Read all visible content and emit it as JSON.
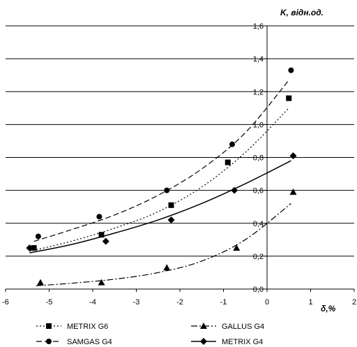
{
  "chart_data": {
    "type": "scatter",
    "xlabel": "δ,%",
    "ylabel": "K, відн.од.",
    "xlim": [
      -6,
      2
    ],
    "ylim": [
      0,
      1.6
    ],
    "x_ticks": [
      "-6",
      "-5",
      "-4",
      "-3",
      "-2",
      "-1",
      "0",
      "1",
      "2"
    ],
    "y_ticks": [
      "0,0",
      "0,2",
      "0,4",
      "0,6",
      "0,8",
      "1,0",
      "1,2",
      "1,4",
      "1,6"
    ],
    "grid": "horizontal",
    "legend_position": "bottom",
    "series": [
      {
        "name": "METRIX G6",
        "marker": "square",
        "line": "dotted",
        "x": [
          -5.35,
          -3.8,
          -2.2,
          -0.9,
          0.5
        ],
        "y": [
          0.25,
          0.33,
          0.51,
          0.77,
          1.16
        ],
        "trend": [
          [
            -5.45,
            0.23
          ],
          [
            -4.5,
            0.29
          ],
          [
            -3.5,
            0.37
          ],
          [
            -2.5,
            0.47
          ],
          [
            -1.5,
            0.62
          ],
          [
            -0.5,
            0.83
          ],
          [
            0.5,
            1.1
          ]
        ]
      },
      {
        "name": "GALLUS G4",
        "marker": "triangle",
        "line": "dash-dot",
        "x": [
          -5.2,
          -3.8,
          -2.3,
          -0.7,
          0.6
        ],
        "y": [
          0.04,
          0.04,
          0.13,
          0.25,
          0.59
        ],
        "trend": [
          [
            -5.3,
            0.02
          ],
          [
            -4.5,
            0.035
          ],
          [
            -3.5,
            0.06
          ],
          [
            -2.5,
            0.1
          ],
          [
            -1.5,
            0.17
          ],
          [
            -0.5,
            0.3
          ],
          [
            0.55,
            0.52
          ]
        ]
      },
      {
        "name": "SAMGAS G4",
        "marker": "circle",
        "line": "dashed",
        "x": [
          -5.25,
          -3.85,
          -2.3,
          -0.8,
          0.55
        ],
        "y": [
          0.32,
          0.44,
          0.6,
          0.88,
          1.33
        ],
        "trend": [
          [
            -5.35,
            0.29
          ],
          [
            -4.5,
            0.36
          ],
          [
            -3.5,
            0.45
          ],
          [
            -2.5,
            0.57
          ],
          [
            -1.5,
            0.73
          ],
          [
            -0.5,
            0.95
          ],
          [
            0.5,
            1.27
          ]
        ]
      },
      {
        "name": "METRIX G4",
        "marker": "diamond",
        "line": "solid",
        "x": [
          -5.45,
          -3.7,
          -2.2,
          -0.75,
          0.6
        ],
        "y": [
          0.25,
          0.29,
          0.42,
          0.6,
          0.81
        ],
        "trend": [
          [
            -5.45,
            0.22
          ],
          [
            -4.5,
            0.27
          ],
          [
            -3.5,
            0.34
          ],
          [
            -2.5,
            0.42
          ],
          [
            -1.5,
            0.52
          ],
          [
            -0.5,
            0.64
          ],
          [
            0.55,
            0.78
          ]
        ]
      }
    ]
  }
}
